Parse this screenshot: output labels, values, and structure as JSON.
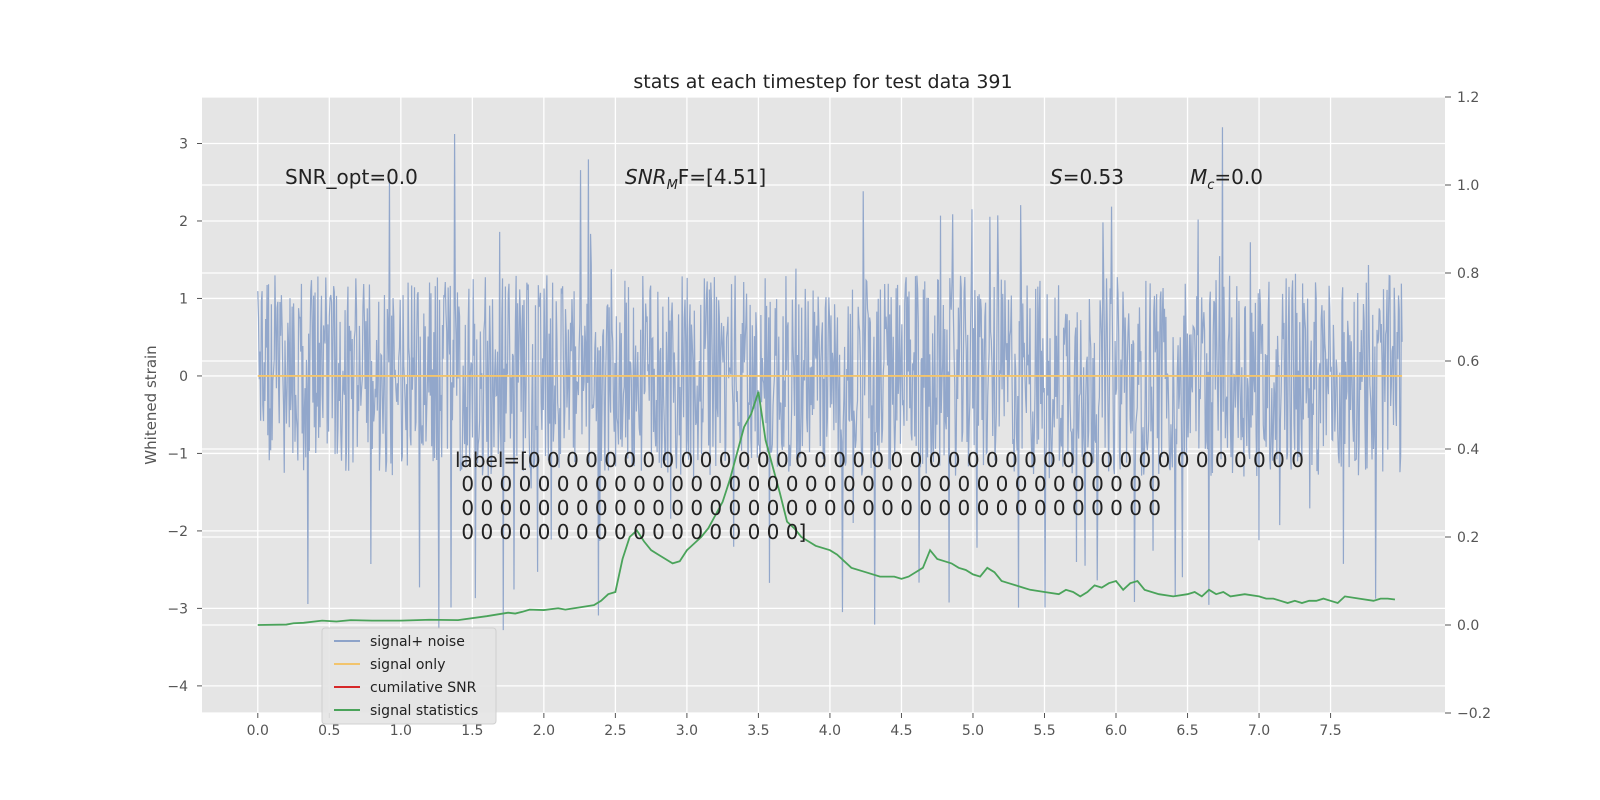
{
  "chart_data": {
    "type": "line",
    "title": "stats at each timestep for test data 391",
    "ylabel": "Whitened strain",
    "xlabel": "",
    "xlim": [
      -0.39,
      8.3
    ],
    "ylim": [
      -4.35,
      3.6
    ],
    "y2lim": [
      -0.2,
      1.2
    ],
    "xticks": [
      0.0,
      0.5,
      1.0,
      1.5,
      2.0,
      2.5,
      3.0,
      3.5,
      4.0,
      4.5,
      5.0,
      5.5,
      6.0,
      6.5,
      7.0,
      7.5
    ],
    "xtick_labels": [
      "0.0",
      "0.5",
      "1.0",
      "1.5",
      "2.0",
      "2.5",
      "3.0",
      "3.5",
      "4.0",
      "4.5",
      "5.0",
      "5.5",
      "6.0",
      "6.5",
      "7.0",
      "7.5"
    ],
    "yticks": [
      -4,
      -3,
      -2,
      -1,
      0,
      1,
      2,
      3
    ],
    "ytick_labels": [
      "−4",
      "−3",
      "−2",
      "−1",
      "0",
      "1",
      "2",
      "3"
    ],
    "y2ticks": [
      -0.2,
      0.0,
      0.2,
      0.4,
      0.6,
      0.8,
      1.0,
      1.2
    ],
    "y2tick_labels": [
      "−0.2",
      "0.0",
      "0.2",
      "0.4",
      "0.6",
      "0.8",
      "1.0",
      "1.2"
    ],
    "grid": true,
    "legend_position": "lower-left",
    "annotations": {
      "snr_opt": "SNR_opt=0.0",
      "snr_mf_main": "SNR",
      "snr_mf_sub": "M",
      "snr_mf_tail": "F=[4.51]",
      "s_sym": "S",
      "s_val": "=0.53",
      "mc_sym": "M",
      "mc_sub": "c",
      "mc_val": "=0.0",
      "label_lines": [
        "label=[0 0 0 0 0 0 0 0 0 0 0 0 0 0 0 0 0 0 0 0 0 0 0 0 0 0 0 0 0 0 0 0 0 0 0 0 0 0 0 0 0",
        " 0 0 0 0 0 0 0 0 0 0 0 0 0 0 0 0 0 0 0 0 0 0 0 0 0 0 0 0 0 0 0 0 0 0 0 0 0",
        " 0 0 0 0 0 0 0 0 0 0 0 0 0 0 0 0 0 0 0 0 0 0 0 0 0 0 0 0 0 0 0 0 0 0 0 0 0",
        " 0 0 0 0 0 0 0 0 0 0 0 0 0 0 0 0 0 0]"
      ]
    },
    "series": [
      {
        "name": "signal+ noise",
        "color": "#8da3c9",
        "axis": "left",
        "noise": {
          "x_start": 0.0,
          "x_end": 8.0,
          "samples": 1600,
          "dense_amplitude": 1.3,
          "peak_max": 3.3,
          "peak_min": -3.95
        }
      },
      {
        "name": "signal only",
        "color": "#f2c46d",
        "axis": "left",
        "x": [
          0.0,
          8.0
        ],
        "y": [
          0.0,
          0.0
        ]
      },
      {
        "name": "cumilative SNR",
        "color": "#d62728",
        "axis": "right",
        "x": [],
        "y": []
      },
      {
        "name": "signal statistics",
        "color": "#4aa35a",
        "axis": "right",
        "x": [
          0.0,
          0.2,
          0.25,
          0.32,
          0.45,
          0.55,
          0.65,
          0.8,
          1.0,
          1.2,
          1.4,
          1.6,
          1.75,
          1.8,
          1.85,
          1.9,
          2.0,
          2.1,
          2.15,
          2.25,
          2.35,
          2.4,
          2.45,
          2.5,
          2.55,
          2.6,
          2.65,
          2.7,
          2.75,
          2.8,
          2.85,
          2.9,
          2.95,
          3.0,
          3.05,
          3.1,
          3.15,
          3.2,
          3.25,
          3.3,
          3.35,
          3.4,
          3.45,
          3.5,
          3.55,
          3.6,
          3.65,
          3.7,
          3.75,
          3.8,
          3.85,
          3.9,
          4.0,
          4.05,
          4.15,
          4.25,
          4.35,
          4.45,
          4.5,
          4.55,
          4.65,
          4.7,
          4.75,
          4.8,
          4.85,
          4.9,
          4.95,
          5.0,
          5.05,
          5.1,
          5.15,
          5.2,
          5.25,
          5.3,
          5.35,
          5.4,
          5.5,
          5.6,
          5.65,
          5.7,
          5.75,
          5.8,
          5.85,
          5.9,
          5.95,
          6.0,
          6.05,
          6.1,
          6.15,
          6.2,
          6.3,
          6.4,
          6.5,
          6.55,
          6.6,
          6.65,
          6.7,
          6.75,
          6.8,
          6.9,
          7.0,
          7.05,
          7.1,
          7.15,
          7.2,
          7.25,
          7.3,
          7.35,
          7.4,
          7.45,
          7.5,
          7.55,
          7.6,
          7.7,
          7.8,
          7.85,
          7.9,
          7.95
        ],
        "y": [
          0.0,
          0.001,
          0.004,
          0.005,
          0.01,
          0.008,
          0.011,
          0.01,
          0.01,
          0.012,
          0.011,
          0.02,
          0.028,
          0.026,
          0.03,
          0.035,
          0.034,
          0.038,
          0.035,
          0.04,
          0.045,
          0.055,
          0.07,
          0.075,
          0.15,
          0.2,
          0.215,
          0.19,
          0.17,
          0.16,
          0.15,
          0.14,
          0.145,
          0.17,
          0.185,
          0.2,
          0.22,
          0.25,
          0.28,
          0.33,
          0.39,
          0.45,
          0.48,
          0.53,
          0.42,
          0.36,
          0.3,
          0.235,
          0.22,
          0.2,
          0.19,
          0.18,
          0.17,
          0.16,
          0.13,
          0.12,
          0.11,
          0.11,
          0.105,
          0.11,
          0.13,
          0.17,
          0.15,
          0.145,
          0.14,
          0.13,
          0.125,
          0.115,
          0.11,
          0.13,
          0.12,
          0.1,
          0.095,
          0.09,
          0.085,
          0.08,
          0.075,
          0.07,
          0.08,
          0.075,
          0.065,
          0.075,
          0.09,
          0.085,
          0.095,
          0.1,
          0.08,
          0.095,
          0.1,
          0.08,
          0.07,
          0.065,
          0.07,
          0.075,
          0.065,
          0.08,
          0.07,
          0.075,
          0.065,
          0.07,
          0.065,
          0.06,
          0.06,
          0.055,
          0.05,
          0.055,
          0.05,
          0.055,
          0.055,
          0.06,
          0.055,
          0.05,
          0.065,
          0.06,
          0.055,
          0.06,
          0.06,
          0.058
        ]
      }
    ]
  }
}
